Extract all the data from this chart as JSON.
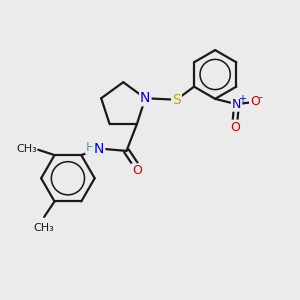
{
  "bg_color": "#ebebeb",
  "bond_color": "#1a1a1a",
  "bond_width": 1.6,
  "atom_colors": {
    "N": "#0000cc",
    "O": "#cc0000",
    "S": "#bbaa00",
    "H": "#5a9a9a",
    "C": "#1a1a1a"
  },
  "font_size": 9
}
